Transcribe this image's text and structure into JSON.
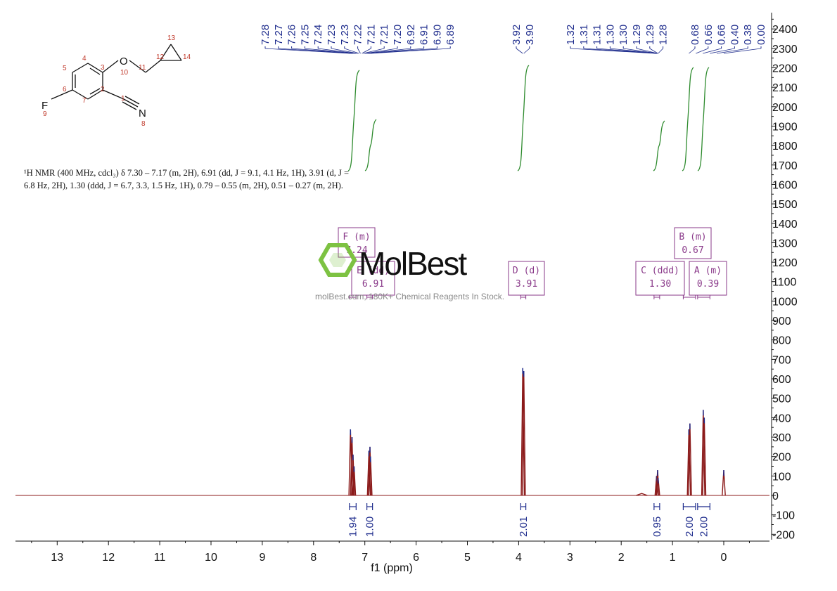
{
  "chart_data": {
    "type": "line",
    "title": "",
    "xlabel": "f1 (ppm)",
    "ylabel": "",
    "xlim": [
      13.9,
      -0.88
    ],
    "ylim": [
      -230,
      2480
    ],
    "x_ticks": [
      "13",
      "12",
      "11",
      "10",
      "9",
      "8",
      "7",
      "6",
      "5",
      "4",
      "3",
      "2",
      "1",
      "0"
    ],
    "y_ticks": [
      "-200",
      "-100",
      "0",
      "100",
      "200",
      "300",
      "400",
      "500",
      "600",
      "700",
      "800",
      "900",
      "1000",
      "1100",
      "1200",
      "1300",
      "1400",
      "1500",
      "1600",
      "1700",
      "1800",
      "1900",
      "2000",
      "2100",
      "2200",
      "2300",
      "2400"
    ],
    "grid": false,
    "series": [
      {
        "peaks": [
          {
            "x": 7.28,
            "y": 340
          },
          {
            "x": 7.25,
            "y": 300
          },
          {
            "x": 7.23,
            "y": 210
          },
          {
            "x": 7.21,
            "y": 150
          },
          {
            "x": 6.92,
            "y": 230
          },
          {
            "x": 6.9,
            "y": 250
          },
          {
            "x": 6.89,
            "y": 200
          },
          {
            "x": 3.92,
            "y": 655
          },
          {
            "x": 3.9,
            "y": 640
          },
          {
            "x": 1.6,
            "y": 10
          },
          {
            "x": 1.31,
            "y": 100
          },
          {
            "x": 1.29,
            "y": 130
          },
          {
            "x": 1.28,
            "y": 90
          },
          {
            "x": 0.68,
            "y": 340
          },
          {
            "x": 0.66,
            "y": 370
          },
          {
            "x": 0.4,
            "y": 440
          },
          {
            "x": 0.38,
            "y": 400
          },
          {
            "x": 0.0,
            "y": 130
          }
        ]
      }
    ],
    "peak_labels": [
      "7.28",
      "7.27",
      "7.26",
      "7.25",
      "7.24",
      "7.23",
      "7.23",
      "7.22",
      "7.21",
      "7.21",
      "7.20",
      "6.92",
      "6.91",
      "6.90",
      "6.89",
      "3.92",
      "3.90",
      "1.32",
      "1.31",
      "1.31",
      "1.30",
      "1.30",
      "1.29",
      "1.29",
      "1.28",
      "0.68",
      "0.66",
      "0.66",
      "0.40",
      "0.38",
      "0.00"
    ],
    "integrals": [
      {
        "range": [
          7.3,
          7.17
        ],
        "value": "1.94"
      },
      {
        "range": [
          6.96,
          6.85
        ],
        "value": "1.00"
      },
      {
        "range": [
          3.96,
          3.86
        ],
        "value": "2.01"
      },
      {
        "range": [
          1.36,
          1.25
        ],
        "value": "0.95"
      },
      {
        "range": [
          0.79,
          0.55
        ],
        "value": "2.00"
      },
      {
        "range": [
          0.51,
          0.27
        ],
        "value": "2.00"
      }
    ],
    "multiplets": [
      {
        "label": "F (m)",
        "shift": "7.24"
      },
      {
        "label": "E (dd)",
        "shift": "6.91"
      },
      {
        "label": "D (d)",
        "shift": "3.91"
      },
      {
        "label": "C (ddd)",
        "shift": "1.30"
      },
      {
        "label": "B (m)",
        "shift": "0.67"
      },
      {
        "label": "A (m)",
        "shift": "0.39"
      }
    ]
  },
  "description": {
    "line1": "¹H NMR (400 MHz, cdcl₃) δ 7.30 – 7.17 (m, 2H), 6.91 (dd, J = 9.1, 4.1 Hz, 1H), 3.91 (d, J =",
    "line2": "6.8 Hz, 2H), 1.30 (ddd, J = 6.7, 3.3, 1.5 Hz, 1H), 0.79 – 0.55 (m, 2H), 0.51 – 0.27 (m, 2H)."
  },
  "structure": {
    "atoms": [
      {
        "symbol": "O",
        "num": "10"
      },
      {
        "symbol": "F",
        "num": "9"
      },
      {
        "symbol": "N",
        "num": "8"
      }
    ],
    "carbon_numbers": [
      "1",
      "2",
      "3",
      "4",
      "5",
      "6",
      "7",
      "11",
      "12",
      "13",
      "14"
    ]
  },
  "watermark": {
    "logo": "MolBest",
    "tagline": "molBest.com, 180K+ Chemical Reagents In Stock."
  },
  "colors": {
    "spectrum": "#8b1a1a",
    "integral_curve": "#2e8b2e",
    "labels": "#1d2b8c",
    "multiplet_box": "#8a3a8a",
    "atom_numbers": "#c0392b",
    "logo_green": "#7dc242"
  }
}
